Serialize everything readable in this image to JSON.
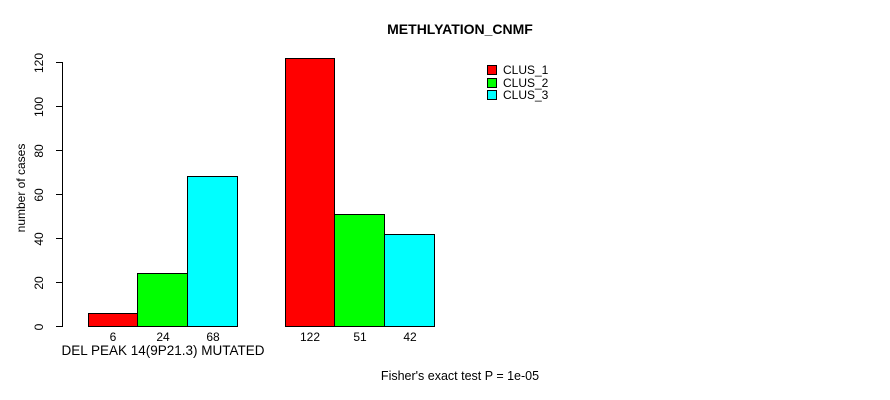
{
  "chart_data": {
    "type": "bar",
    "title": "METHLYATION_CNMF",
    "ylabel": "number of cases",
    "xlabel": "",
    "ylim": [
      0,
      120
    ],
    "yticks": [
      0,
      20,
      40,
      60,
      80,
      100,
      120
    ],
    "grid": false,
    "legend_position": "top-right",
    "legend": [
      {
        "name": "CLUS_1",
        "color": "#ff0000"
      },
      {
        "name": "CLUS_2",
        "color": "#00ff00"
      },
      {
        "name": "CLUS_3",
        "color": "#00ffff"
      }
    ],
    "series": [
      {
        "name": "CLUS_1",
        "values": [
          6,
          122
        ]
      },
      {
        "name": "CLUS_2",
        "values": [
          24,
          51
        ]
      },
      {
        "name": "CLUS_3",
        "values": [
          68,
          42
        ]
      }
    ],
    "groups": [
      {
        "label": "DEL PEAK 14(9P21.3) MUTATED",
        "values": [
          6,
          24,
          68
        ],
        "bar_labels": [
          "6",
          "24",
          "68"
        ]
      },
      {
        "label": "",
        "values": [
          122,
          51,
          42
        ],
        "bar_labels": [
          "122",
          "51",
          "42"
        ]
      }
    ],
    "footnote": "Fisher's exact test P = 1e-05"
  }
}
